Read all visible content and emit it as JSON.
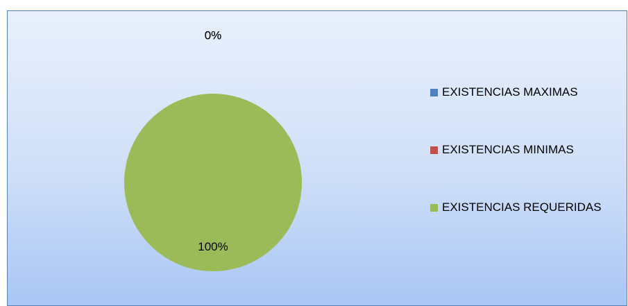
{
  "chart_data": {
    "type": "pie",
    "categories": [
      "EXISTENCIAS MAXIMAS",
      "EXISTENCIAS MINIMAS",
      "EXISTENCIAS REQUERIDAS"
    ],
    "values": [
      0,
      0,
      100
    ],
    "value_labels": [
      "0%",
      "0%",
      "100%"
    ],
    "colors": [
      "#4f81bd",
      "#c0504d",
      "#9bbb59"
    ],
    "legend": "right"
  }
}
